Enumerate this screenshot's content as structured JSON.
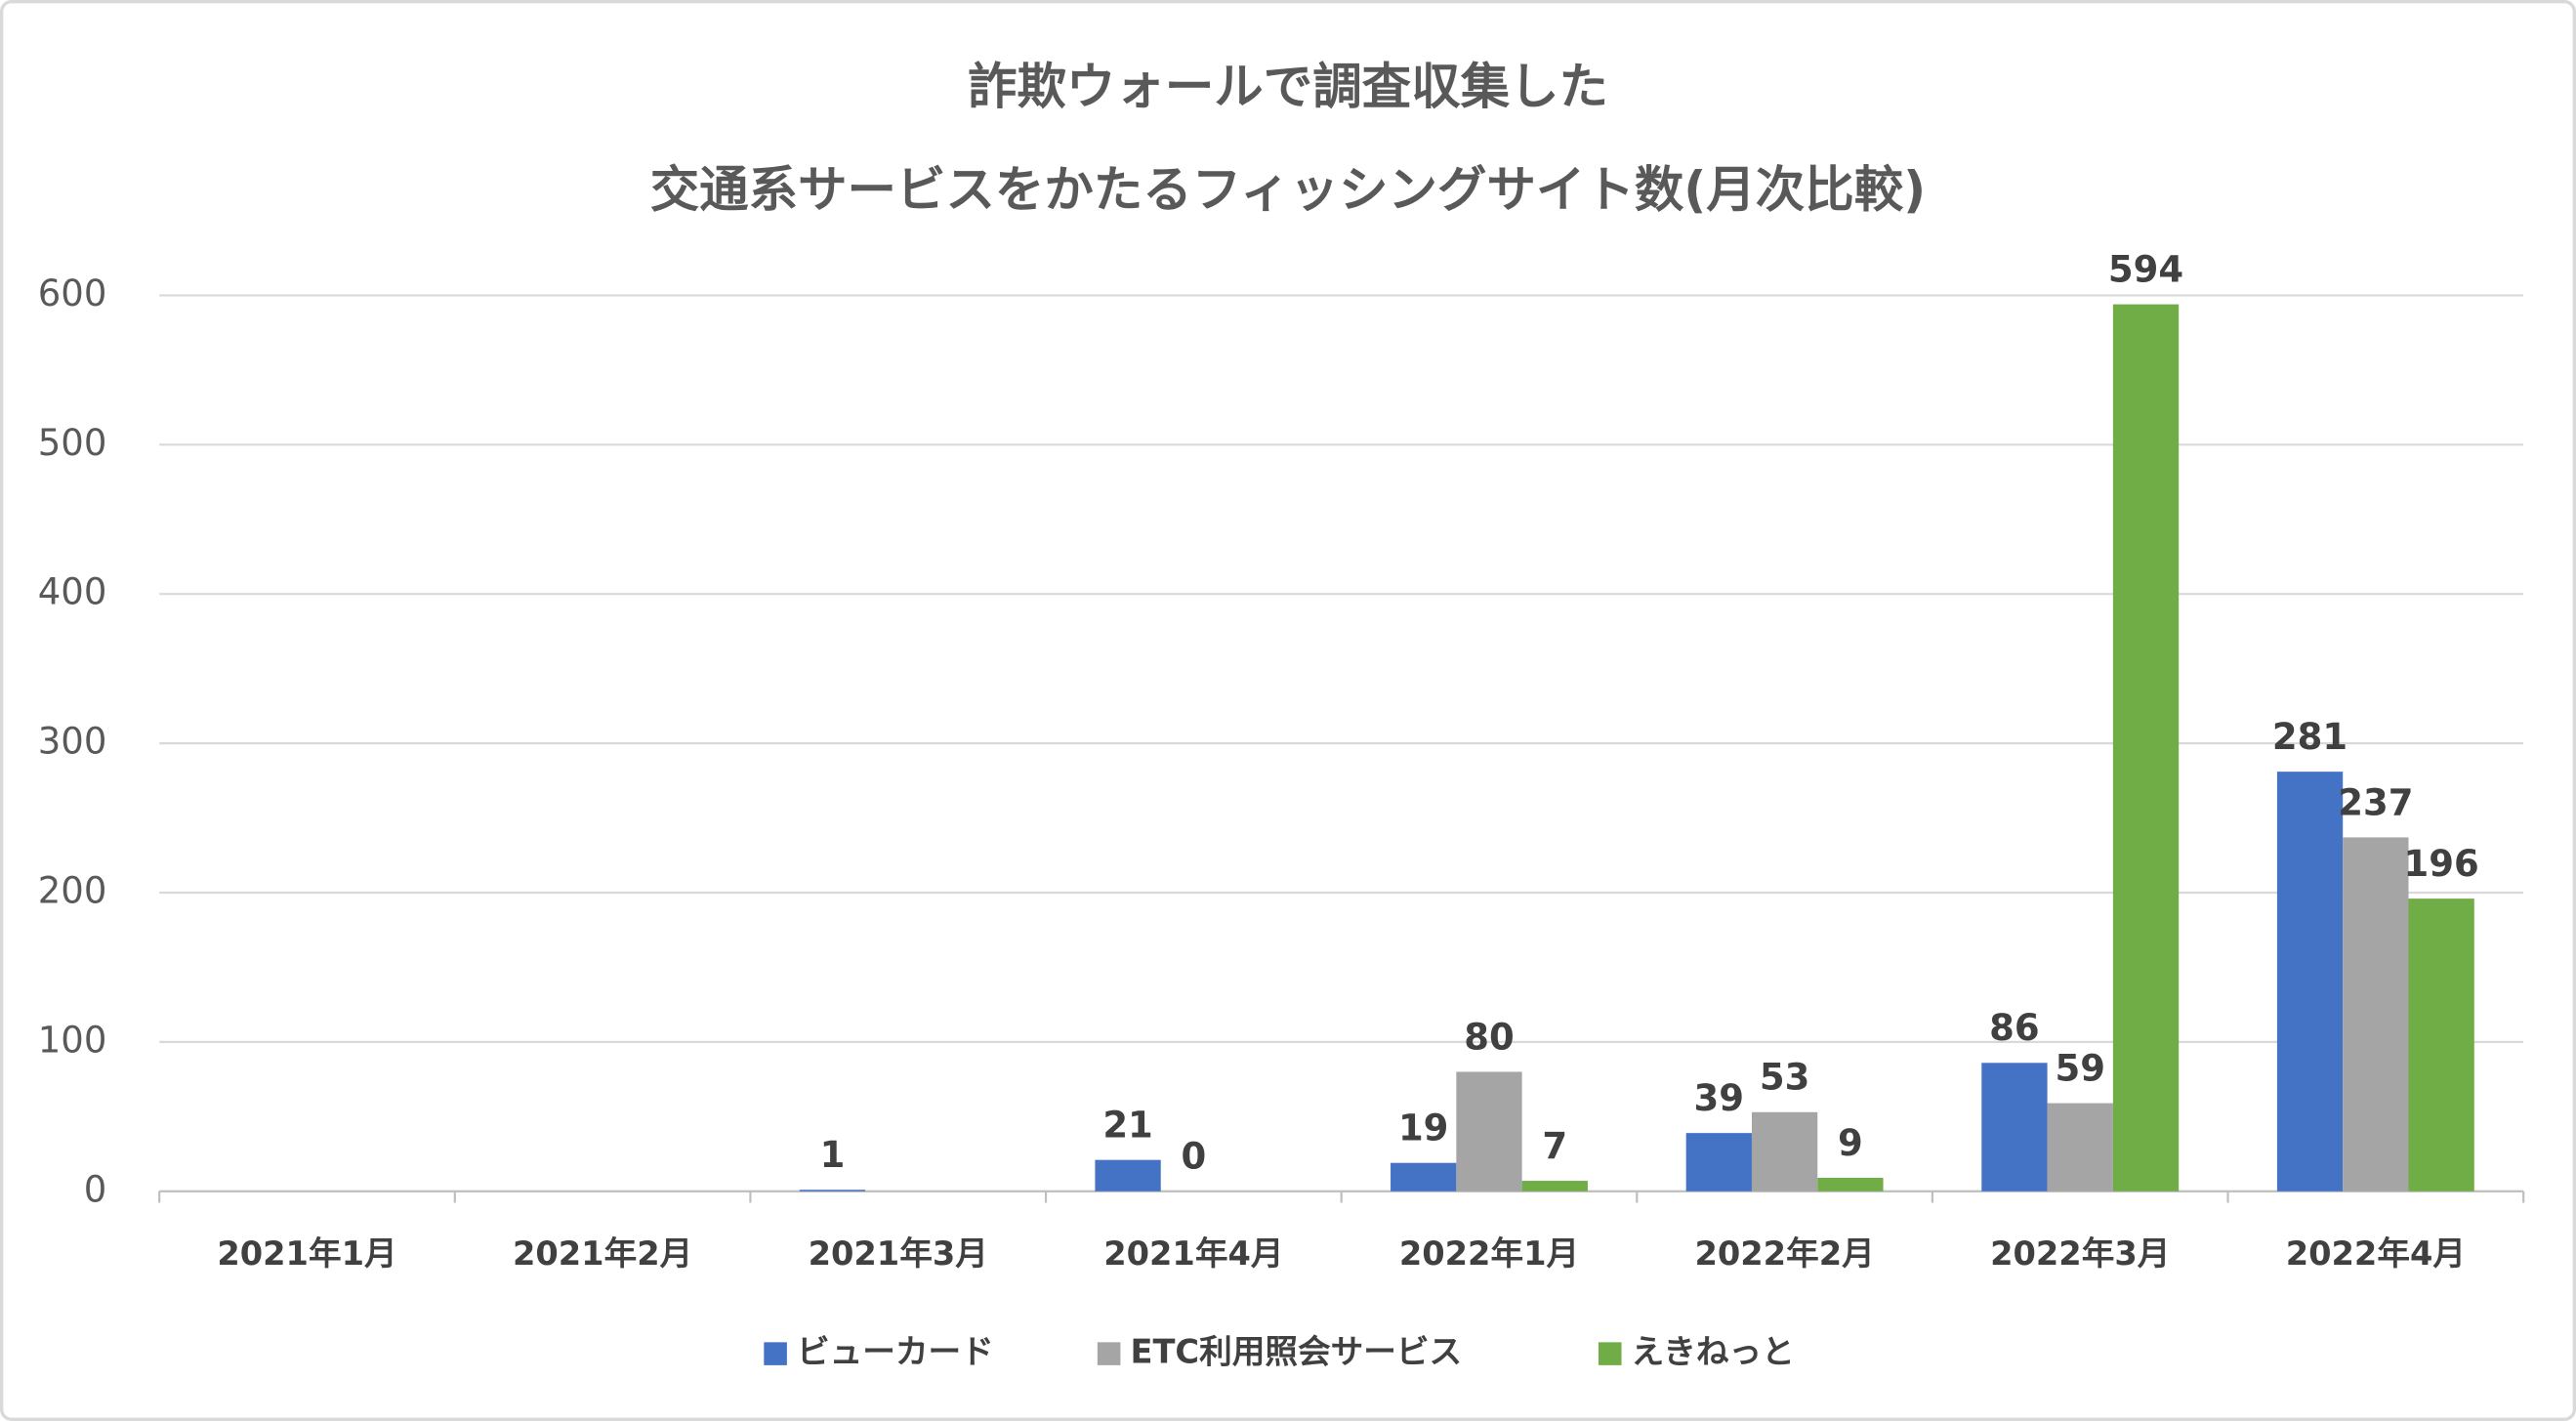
{
  "chart_data": {
    "type": "bar",
    "title": [
      "詐欺ウォールで調査収集した",
      "交通系サービスをかたるフィッシングサイト数(月次比較)"
    ],
    "categories": [
      "2021年1月",
      "2021年2月",
      "2021年3月",
      "2021年4月",
      "2022年1月",
      "2022年2月",
      "2022年3月",
      "2022年4月"
    ],
    "series": [
      {
        "name": "ビューカード",
        "color": "#4472c4",
        "values": [
          null,
          null,
          1,
          21,
          19,
          39,
          86,
          281
        ]
      },
      {
        "name": "ETC利用照会サービス",
        "color": "#a5a5a5",
        "values": [
          null,
          null,
          null,
          0,
          80,
          53,
          59,
          237
        ]
      },
      {
        "name": "えきねっと",
        "color": "#70ad47",
        "values": [
          null,
          null,
          null,
          null,
          7,
          9,
          594,
          196
        ]
      }
    ],
    "ylim": [
      0,
      600
    ],
    "yticks": [
      0,
      100,
      200,
      300,
      400,
      500,
      600
    ],
    "grid": true,
    "legend": "bottom"
  }
}
